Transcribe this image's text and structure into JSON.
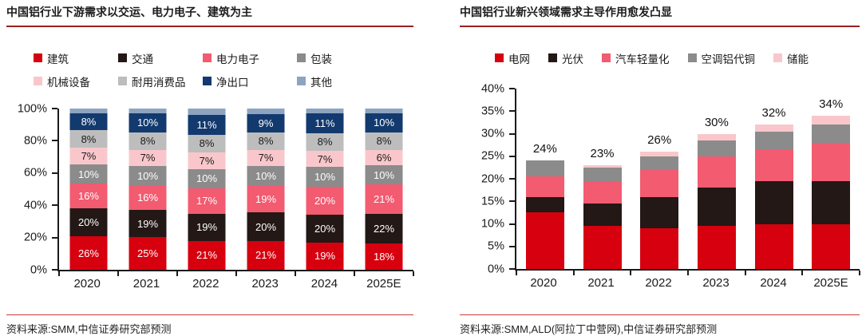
{
  "theme": {
    "background": "#ffffff",
    "title_rule": "#9c1f23",
    "source_rule": "#cd3a3a",
    "axis": "#1a1a1a",
    "brand_red": "#d7000f"
  },
  "panels": [
    {
      "title": "中国铝行业下游需求以交运、电力电子、建筑为主",
      "source": "资料来源:SMM,中信证券研究部预测"
    },
    {
      "title": "中国铝行业新兴领域需求主导作用愈发凸显",
      "source": "资料来源:SMM,ALD(阿拉丁中营网),中信证券研究部预测"
    }
  ],
  "chart_data": [
    {
      "type": "bar",
      "stacked": true,
      "percent_stacked": true,
      "unit": "%",
      "data_labels": true,
      "grid": false,
      "legend_position": "top",
      "title": "中国铝行业下游需求以交运、电力电子、建筑为主",
      "categories": [
        "2020",
        "2021",
        "2022",
        "2023",
        "2024",
        "2025E"
      ],
      "series": [
        {
          "name": "建筑",
          "color": "#d7000f",
          "label_color": "#ffffff",
          "values": [
            26,
            25,
            21,
            21,
            19,
            18
          ]
        },
        {
          "name": "交通",
          "color": "#231815",
          "label_color": "#ffffff",
          "values": [
            20,
            19,
            19,
            20,
            20,
            22
          ]
        },
        {
          "name": "电力电子",
          "color": "#f25b70",
          "label_color": "#ffffff",
          "values": [
            16,
            16,
            17,
            19,
            20,
            21
          ]
        },
        {
          "name": "包装",
          "color": "#8b8b8b",
          "label_color": "#ffffff",
          "values": [
            10,
            10,
            10,
            10,
            10,
            10
          ]
        },
        {
          "name": "机械设备",
          "color": "#f9c7cb",
          "label_color": "#1a1a1a",
          "values": [
            7,
            7,
            7,
            7,
            7,
            6
          ]
        },
        {
          "name": "耐用消费品",
          "color": "#bdbdbe",
          "label_color": "#1a1a1a",
          "values": [
            8,
            8,
            8,
            8,
            8,
            8
          ]
        },
        {
          "name": "净出口",
          "color": "#133a6e",
          "label_color": "#ffffff",
          "values": [
            8,
            10,
            11,
            9,
            11,
            10
          ]
        },
        {
          "name": "其他",
          "color": "#8da4c0",
          "label_color": "#1a1a1a",
          "values": [
            5,
            5,
            7,
            6,
            5,
            5
          ],
          "show_labels": false
        }
      ],
      "ylim": [
        0,
        100
      ],
      "yticks": [
        "0%",
        "20%",
        "40%",
        "60%",
        "80%",
        "100%"
      ],
      "legend_rows": [
        [
          "建筑",
          "交通",
          "电力电子",
          "包装"
        ],
        [
          "机械设备",
          "耐用消费品",
          "净出口",
          "其他"
        ]
      ]
    },
    {
      "type": "bar",
      "stacked": true,
      "unit": "%",
      "data_labels": false,
      "grid": false,
      "legend_position": "top",
      "title": "中国铝行业新兴领域需求主导作用愈发凸显",
      "categories": [
        "2020",
        "2021",
        "2022",
        "2023",
        "2024",
        "2025E"
      ],
      "series": [
        {
          "name": "电网",
          "color": "#d7000f",
          "values": [
            12.5,
            9.5,
            9,
            9.5,
            10,
            10
          ]
        },
        {
          "name": "光伏",
          "color": "#231815",
          "values": [
            3.5,
            5,
            7,
            8.5,
            9.5,
            9.5
          ]
        },
        {
          "name": "汽车轻量化",
          "color": "#f25b70",
          "values": [
            4.5,
            5,
            6,
            7,
            7,
            8.5
          ]
        },
        {
          "name": "空调铝代铜",
          "color": "#8b8b8b",
          "values": [
            3.5,
            3,
            3,
            3.5,
            4,
            4
          ]
        },
        {
          "name": "储能",
          "color": "#f9c7cb",
          "values": [
            0,
            0.5,
            1,
            1.5,
            1.5,
            2
          ]
        }
      ],
      "totals": [
        "24%",
        "23%",
        "26%",
        "30%",
        "32%",
        "34%"
      ],
      "ylim": [
        0,
        40
      ],
      "yticks": [
        "0%",
        "5%",
        "10%",
        "15%",
        "20%",
        "25%",
        "30%",
        "35%",
        "40%"
      ]
    }
  ]
}
